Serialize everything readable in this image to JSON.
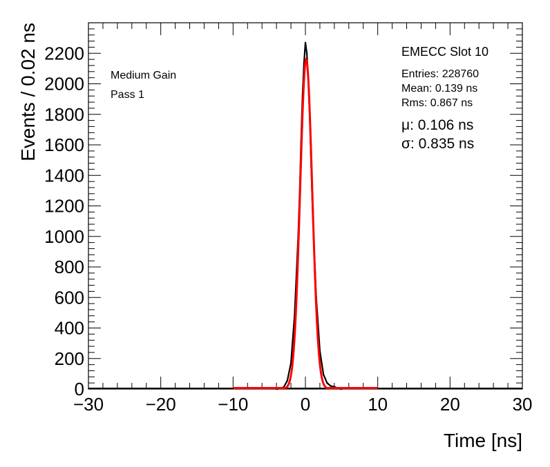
{
  "chart_data": {
    "type": "histogram",
    "xlabel": "Time [ns]",
    "ylabel": "Events / 0.02 ns",
    "xlim": [
      -30,
      30
    ],
    "ylim": [
      0,
      2400
    ],
    "x_ticks": [
      "−30",
      "−20",
      "−10",
      "0",
      "10",
      "20",
      "30"
    ],
    "x_tick_values": [
      -30,
      -20,
      -10,
      0,
      10,
      20,
      30
    ],
    "y_ticks": [
      "0",
      "200",
      "400",
      "600",
      "800",
      "1000",
      "1200",
      "1400",
      "1600",
      "1800",
      "2000",
      "2200"
    ],
    "y_tick_values": [
      0,
      200,
      400,
      600,
      800,
      1000,
      1200,
      1400,
      1600,
      1800,
      2000,
      2200
    ],
    "labels": {
      "gain": "Medium Gain",
      "pass": "Pass 1",
      "slot": "EMECC Slot 10",
      "entries": "Entries: 228760",
      "mean": "Mean: 0.139 ns",
      "rms": "Rms: 0.867 ns",
      "mu": "μ: 0.106 ns",
      "sigma": "σ: 0.835 ns"
    },
    "series": [
      {
        "kind": "histogram",
        "color": "#000000",
        "x": [
          -4.0,
          -3.5,
          -3.0,
          -2.5,
          -2.0,
          -1.5,
          -1.0,
          -0.8,
          -0.6,
          -0.4,
          -0.2,
          0.0,
          0.2,
          0.4,
          0.6,
          0.8,
          1.0,
          1.5,
          2.0,
          2.5,
          3.0,
          3.5,
          4.0,
          4.5,
          5.0
        ],
        "y": [
          0,
          4,
          12,
          55,
          170,
          480,
          1000,
          1280,
          1620,
          1920,
          2130,
          2270,
          2200,
          2020,
          1780,
          1460,
          1160,
          600,
          250,
          95,
          40,
          20,
          15,
          4,
          0
        ]
      },
      {
        "kind": "gaussian-fit",
        "color": "#ff0000",
        "amplitude": 2160,
        "mean": 0.106,
        "sigma": 0.835,
        "x_range": [
          -10,
          10
        ]
      }
    ]
  }
}
